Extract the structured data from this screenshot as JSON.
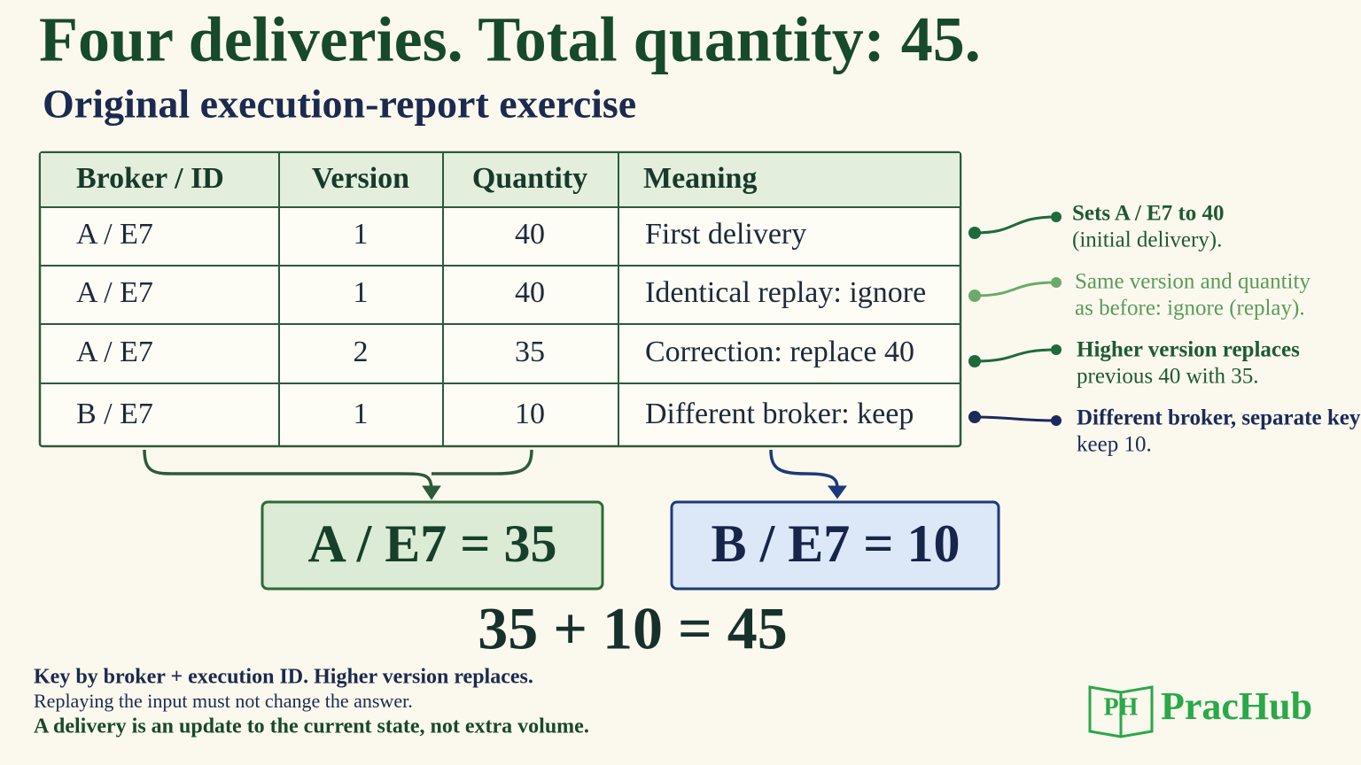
{
  "header": {
    "title": "Four deliveries. Total quantity: 45.",
    "subtitle": "Original execution-report exercise"
  },
  "table": {
    "columns": [
      "Broker / ID",
      "Version",
      "Quantity",
      "Meaning"
    ],
    "rows": [
      [
        "A / E7",
        "1",
        "40",
        "First delivery"
      ],
      [
        "A / E7",
        "1",
        "40",
        "Identical replay: ignore"
      ],
      [
        "A / E7",
        "2",
        "35",
        "Correction: replace 40"
      ],
      [
        "B / E7",
        "1",
        "10",
        "Different broker: keep"
      ]
    ]
  },
  "annotations": [
    [
      "Sets A / E7 to 40",
      "(initial delivery)."
    ],
    [
      "Same version and quantity",
      "as before: ignore (replay)."
    ],
    [
      "Higher version replaces",
      "previous 40 with 35."
    ],
    [
      "Different broker, separate key:",
      "keep 10."
    ]
  ],
  "results": [
    "A / E7 = 35",
    "B / E7 = 10"
  ],
  "equation": "35 + 10 = 45",
  "footer": [
    "Key by broker + execution ID.  Higher version replaces.",
    "Replaying the input must not change the answer.",
    "A delivery is an update to the current state, not extra volume."
  ],
  "logo": {
    "icon": "PH",
    "name": "PracHub"
  }
}
